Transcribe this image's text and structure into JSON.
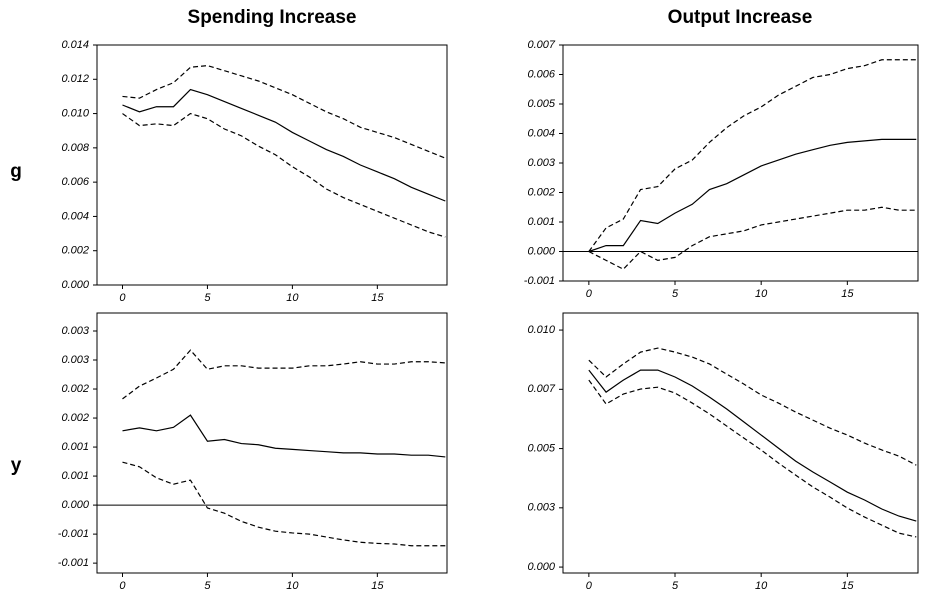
{
  "column_titles": [
    "Spending Increase",
    "Output Increase"
  ],
  "row_labels": [
    "g",
    "y"
  ],
  "chart_data": [
    {
      "type": "line",
      "x": [
        0,
        1,
        2,
        3,
        4,
        5,
        6,
        7,
        8,
        9,
        10,
        11,
        12,
        13,
        14,
        15,
        16,
        17,
        18,
        19
      ],
      "xlim": [
        -1.5,
        19.1
      ],
      "xticks": [
        0,
        5,
        10,
        15
      ],
      "ylim": [
        0,
        0.014
      ],
      "yticks": [
        0.014,
        0.012,
        {
          "value": 0.01,
          "label": "0.010"
        },
        0.008,
        0.006,
        0.004,
        0.002,
        {
          "value": 0,
          "label": "0.000"
        }
      ],
      "zero_line": false,
      "series": [
        {
          "color": "#000000",
          "dashed": false,
          "values": [
            0.0105,
            0.0101,
            0.0104,
            0.0104,
            0.0114,
            0.0111,
            0.0107,
            0.0103,
            0.0099,
            0.0095,
            0.0089,
            0.0084,
            0.0079,
            0.0075,
            0.007,
            0.0066,
            0.0062,
            0.0057,
            0.0053,
            0.0049
          ]
        },
        {
          "color": "#000000",
          "dashed": true,
          "values": [
            0.011,
            0.0109,
            0.0114,
            0.0118,
            0.0127,
            0.0128,
            0.0125,
            0.0122,
            0.0119,
            0.0115,
            0.0111,
            0.0106,
            0.0101,
            0.0097,
            0.0092,
            0.0089,
            0.0086,
            0.0082,
            0.0078,
            0.0074
          ]
        },
        {
          "color": "#000000",
          "dashed": true,
          "values": [
            0.01,
            0.0093,
            0.0094,
            0.0093,
            0.01,
            0.0097,
            0.0091,
            0.0087,
            0.0081,
            0.0076,
            0.0069,
            0.0063,
            0.0056,
            0.0051,
            0.0047,
            0.0043,
            0.0039,
            0.0035,
            0.0031,
            0.0028
          ]
        }
      ]
    },
    {
      "type": "line",
      "x": [
        0,
        1,
        2,
        3,
        4,
        5,
        6,
        7,
        8,
        9,
        10,
        11,
        12,
        13,
        14,
        15,
        16,
        17,
        18,
        19
      ],
      "xlim": [
        -1.5,
        19.1
      ],
      "xticks": [
        0,
        5,
        10,
        15
      ],
      "ylim": [
        -0.001,
        0.007
      ],
      "yticks": [
        0.007,
        0.006,
        0.005,
        0.004,
        0.003,
        0.002,
        0.001,
        {
          "value": 0,
          "label": "0.000"
        },
        -0.001
      ],
      "zero_line": true,
      "series": [
        {
          "color": "#000000",
          "dashed": false,
          "values": [
            0,
            0.0002,
            0.0002,
            0.00105,
            0.00095,
            0.0013,
            0.0016,
            0.0021,
            0.0023,
            0.0026,
            0.0029,
            0.0031,
            0.0033,
            0.00345,
            0.0036,
            0.0037,
            0.00375,
            0.0038,
            0.0038,
            0.0038
          ]
        },
        {
          "color": "#000000",
          "dashed": true,
          "values": [
            0,
            0.0008,
            0.0011,
            0.0021,
            0.0022,
            0.0028,
            0.0031,
            0.0037,
            0.0042,
            0.0046,
            0.0049,
            0.0053,
            0.0056,
            0.0059,
            0.006,
            0.0062,
            0.0063,
            0.0065,
            0.0065,
            0.0065
          ]
        },
        {
          "color": "#000000",
          "dashed": true,
          "values": [
            0,
            -0.0003,
            -0.0006,
            0,
            -0.0003,
            -0.0002,
            0.0002,
            0.0005,
            0.0006,
            0.0007,
            0.0009,
            0.001,
            0.0011,
            0.0012,
            0.0013,
            0.0014,
            0.0014,
            0.0015,
            0.0014,
            0.0014
          ]
        }
      ]
    },
    {
      "type": "line",
      "x": [
        0,
        1,
        2,
        3,
        4,
        5,
        6,
        7,
        8,
        9,
        10,
        11,
        12,
        13,
        14,
        15,
        16,
        17,
        18,
        19
      ],
      "xlim": [
        -1.5,
        19.1
      ],
      "xticks": [
        0,
        5,
        10,
        15
      ],
      "ylim": [
        -0.00117,
        0.00331
      ],
      "yticks": [
        {
          "value": 0.003,
          "label": "0.003"
        },
        {
          "value": 0.0025,
          "label": "0.003"
        },
        {
          "value": 0.002,
          "label": "0.002"
        },
        {
          "value": 0.0015,
          "label": "0.002"
        },
        {
          "value": 0.001,
          "label": "0.001"
        },
        {
          "value": 0.0005,
          "label": "0.001"
        },
        {
          "value": 0,
          "label": "0.000"
        },
        {
          "value": -0.0005,
          "label": "-0.001"
        },
        {
          "value": -0.001,
          "label": "-0.001"
        }
      ],
      "zero_line": true,
      "series": [
        {
          "color": "#000000",
          "dashed": false,
          "values": [
            0.00128,
            0.00133,
            0.00128,
            0.00134,
            0.00155,
            0.0011,
            0.00113,
            0.00106,
            0.00104,
            0.00098,
            0.00096,
            0.00094,
            0.00092,
            0.0009,
            0.0009,
            0.00088,
            0.00088,
            0.00086,
            0.00086,
            0.00083
          ]
        },
        {
          "color": "#000000",
          "dashed": true,
          "values": [
            0.00183,
            0.00205,
            0.00219,
            0.00234,
            0.00267,
            0.00234,
            0.0024,
            0.0024,
            0.00236,
            0.00236,
            0.00236,
            0.0024,
            0.0024,
            0.00243,
            0.00247,
            0.00243,
            0.00243,
            0.00247,
            0.00247,
            0.00245
          ]
        },
        {
          "color": "#000000",
          "dashed": true,
          "values": [
            0.00074,
            0.00066,
            0.00047,
            0.00036,
            0.00043,
            -5e-05,
            -0.00014,
            -0.00028,
            -0.00038,
            -0.00045,
            -0.00048,
            -0.0005,
            -0.00055,
            -0.0006,
            -0.00064,
            -0.00066,
            -0.00067,
            -0.0007,
            -0.0007,
            -0.0007
          ]
        }
      ]
    },
    {
      "type": "line",
      "x": [
        0,
        1,
        2,
        3,
        4,
        5,
        6,
        7,
        8,
        9,
        10,
        11,
        12,
        13,
        14,
        15,
        16,
        17,
        18,
        19
      ],
      "xlim": [
        -1.5,
        19.1
      ],
      "xticks": [
        0,
        5,
        10,
        15
      ],
      "ylim": [
        -0.00025,
        0.01072
      ],
      "yticks": [
        {
          "value": 0.01,
          "label": "0.010"
        },
        {
          "value": 0.0075,
          "label": "0.007"
        },
        {
          "value": 0.005,
          "label": "0.005"
        },
        {
          "value": 0.0025,
          "label": "0.003"
        },
        {
          "value": 0,
          "label": "0.000"
        }
      ],
      "zero_line": false,
      "series": [
        {
          "color": "#000000",
          "dashed": false,
          "values": [
            0.00831,
            0.00738,
            0.00789,
            0.00831,
            0.00831,
            0.00802,
            0.00764,
            0.00717,
            0.00667,
            0.00612,
            0.00557,
            0.00502,
            0.00447,
            0.00401,
            0.00359,
            0.00316,
            0.00283,
            0.00245,
            0.00215,
            0.00194
          ]
        },
        {
          "color": "#000000",
          "dashed": true,
          "values": [
            0.00873,
            0.00802,
            0.00857,
            0.00907,
            0.00924,
            0.00907,
            0.00886,
            0.00857,
            0.00814,
            0.00772,
            0.00726,
            0.00692,
            0.00654,
            0.0062,
            0.00586,
            0.00557,
            0.00523,
            0.00494,
            0.00468,
            0.0043
          ]
        },
        {
          "color": "#000000",
          "dashed": true,
          "values": [
            0.00789,
            0.00688,
            0.0073,
            0.00751,
            0.00759,
            0.00734,
            0.00692,
            0.00646,
            0.00595,
            0.00544,
            0.00494,
            0.00439,
            0.00388,
            0.00338,
            0.00295,
            0.00249,
            0.00211,
            0.00177,
            0.00143,
            0.00127
          ]
        }
      ]
    }
  ]
}
